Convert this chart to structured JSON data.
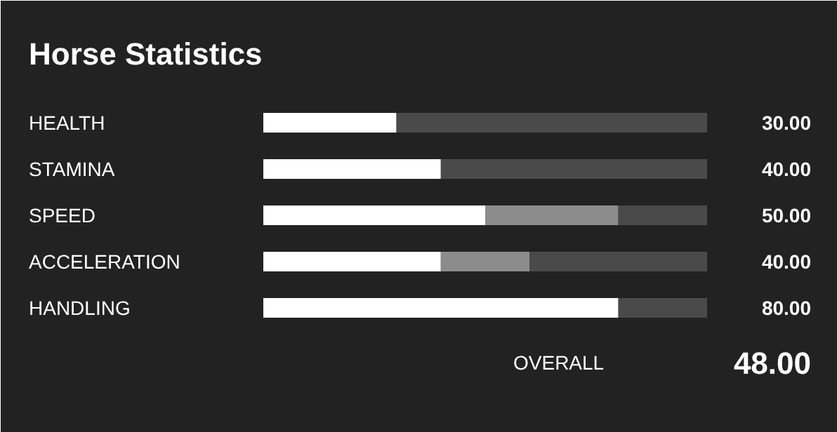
{
  "chart_data": {
    "type": "bar",
    "orientation": "horizontal",
    "stacked": true,
    "title": "Horse Statistics",
    "categories": [
      "HEALTH",
      "STAMINA",
      "SPEED",
      "ACCELERATION",
      "HANDLING"
    ],
    "xlim": [
      0,
      100
    ],
    "tick_labels": "y",
    "grid": false,
    "series": [
      {
        "color": "#ffffff",
        "values": [
          30,
          40,
          50,
          40,
          80
        ],
        "value_labels": [
          "30.00",
          "40.00",
          "50.00",
          "40.00",
          "80.00"
        ]
      },
      {
        "color": "#8c8c8c",
        "values": [
          0,
          0,
          30,
          20,
          0
        ]
      },
      {
        "color": "#4a4a4a",
        "values": [
          70,
          60,
          20,
          40,
          20
        ]
      }
    ],
    "annotations": [
      "OVERALL",
      "48.00"
    ]
  }
}
